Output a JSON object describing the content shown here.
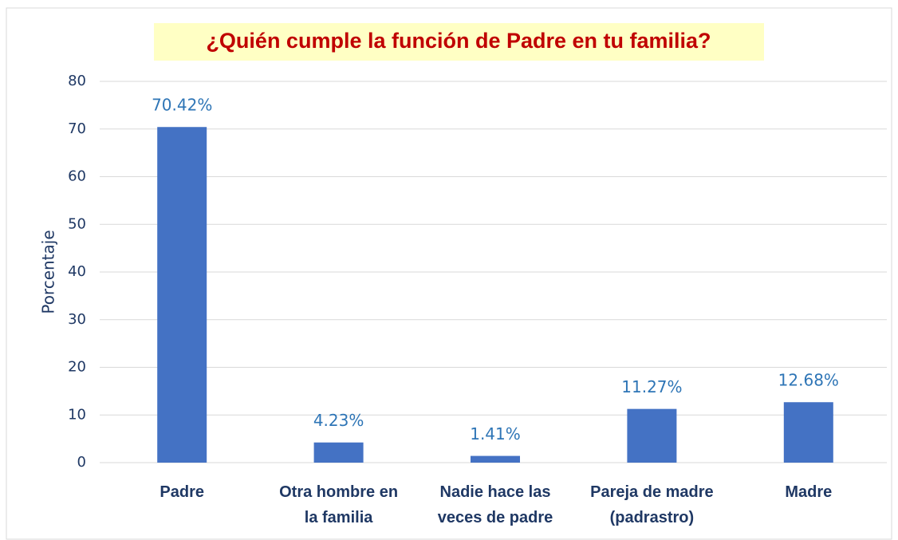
{
  "chart_data": {
    "type": "bar",
    "title": "¿Quién cumple la función de Padre en tu familia?",
    "y_label": "Porcentaje",
    "categories": [
      "Padre",
      "Otra hombre en\nla familia",
      "Nadie hace las\nveces de padre",
      "Pareja de madre\n(padrastro)",
      "Madre"
    ],
    "values": [
      70.42,
      4.23,
      1.41,
      11.27,
      12.68
    ],
    "value_labels": [
      "70.42%",
      "4.23%",
      "1.41%",
      "11.27%",
      "12.68%"
    ],
    "color": "#4472c4",
    "ylim": [
      0,
      80
    ],
    "yticks": [
      0,
      10,
      20,
      30,
      40,
      50,
      60,
      70,
      80
    ],
    "grid": true
  }
}
